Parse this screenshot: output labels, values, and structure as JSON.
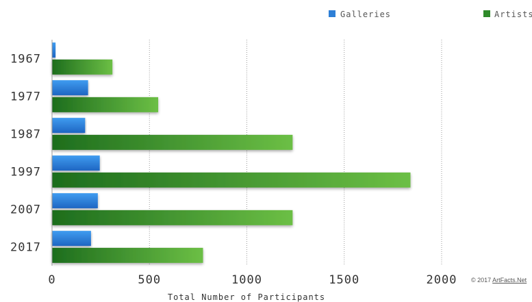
{
  "chart_data": {
    "type": "bar",
    "orientation": "horizontal",
    "categories": [
      "1967",
      "1977",
      "1987",
      "1997",
      "2007",
      "2017"
    ],
    "series": [
      {
        "name": "Galleries",
        "values": [
          18,
          185,
          170,
          245,
          235,
          200
        ],
        "color": "#2e7fd6"
      },
      {
        "name": "Artists",
        "values": [
          310,
          545,
          1235,
          1840,
          1235,
          775
        ],
        "color": "#2f8a2a"
      }
    ],
    "xlabel": "Total Number of Participants",
    "xlim": [
      0,
      2000
    ],
    "xticks": [
      "0",
      "500",
      "1000",
      "1500",
      "2000"
    ],
    "grid": "vertical dotted",
    "legend": "top"
  },
  "footer": {
    "copyright_prefix": "© 2017 ",
    "copyright_link": "ArtFacts.Net"
  }
}
